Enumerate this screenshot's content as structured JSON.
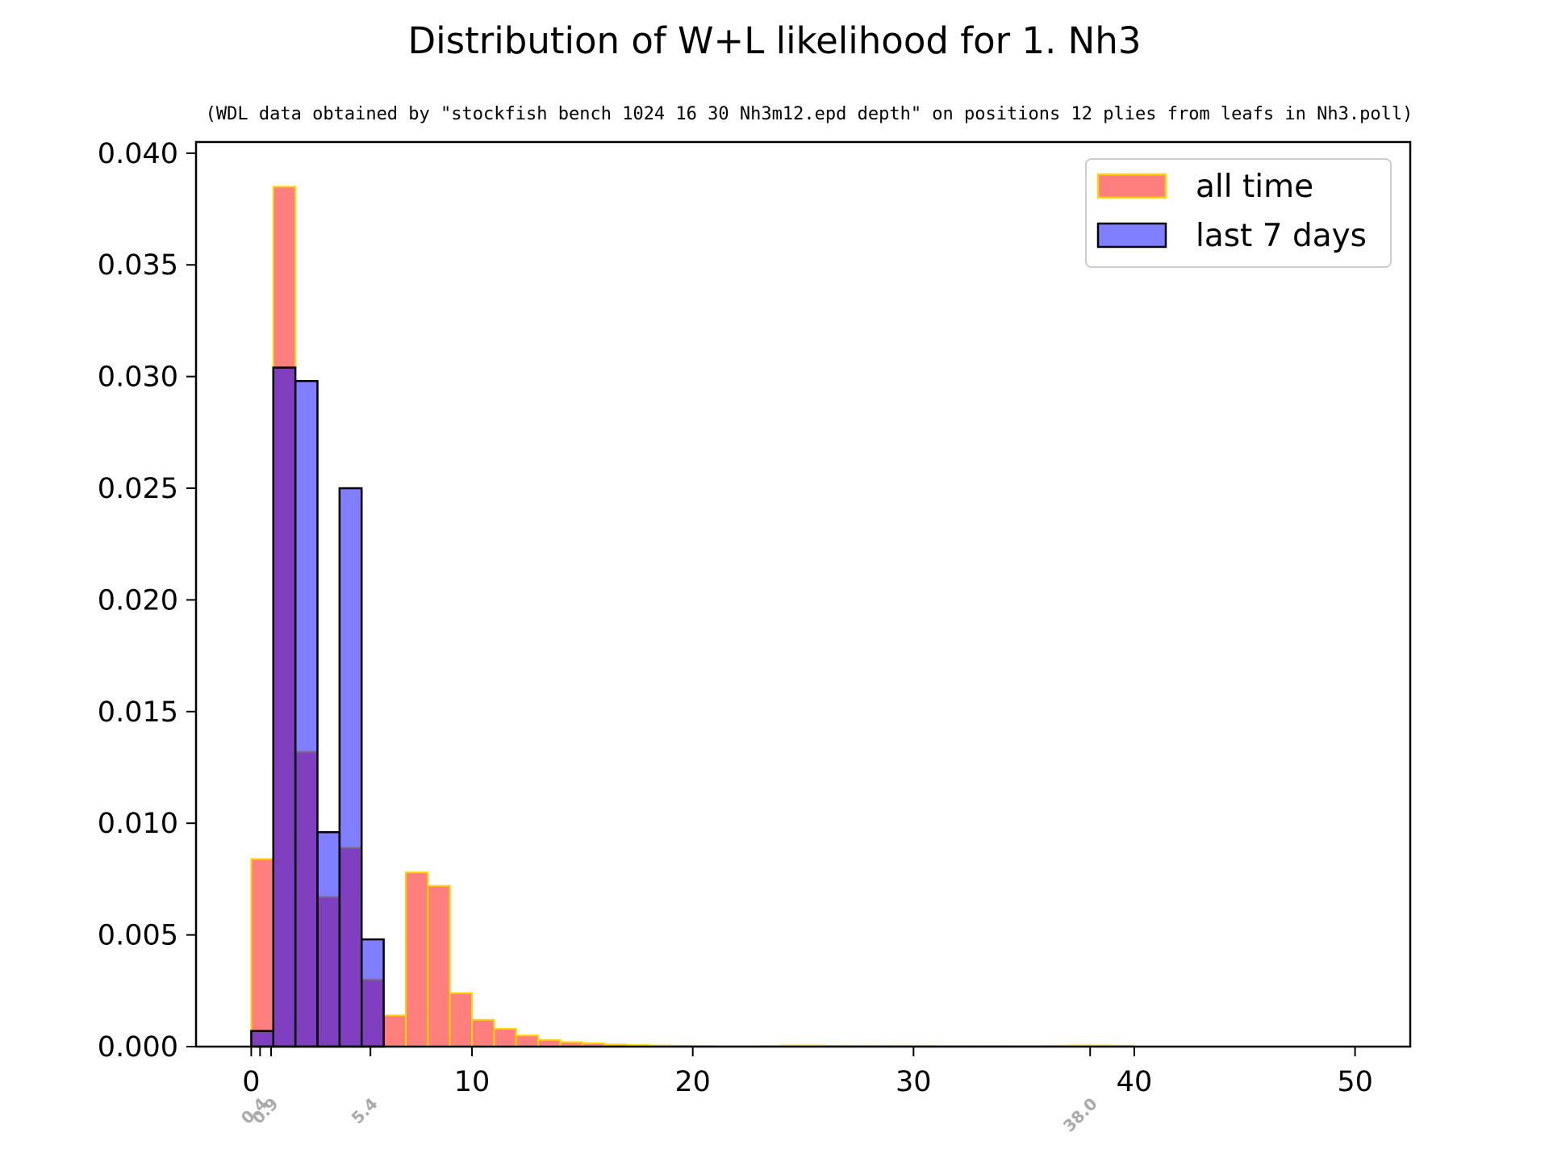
{
  "chart_data": {
    "type": "bar",
    "title": "Distribution of W+L likelihood for 1. Nh3",
    "subtitle": "(WDL data obtained by \"stockfish bench 1024 16 30 Nh3m12.epd depth\" on positions 12 plies from leafs in Nh3.poll)",
    "xlabel": "",
    "ylabel": "",
    "xlim": [
      -2.5,
      52.5
    ],
    "ylim": [
      0,
      0.0405
    ],
    "bin_width": 1.0,
    "x_ticks": [
      0,
      10,
      20,
      30,
      40,
      50
    ],
    "x_tick_labels": [
      "0",
      "10",
      "20",
      "30",
      "40",
      "50"
    ],
    "y_ticks": [
      0.0,
      0.005,
      0.01,
      0.015,
      0.02,
      0.025,
      0.03,
      0.035,
      0.04
    ],
    "y_tick_labels": [
      "0.000",
      "0.005",
      "0.010",
      "0.015",
      "0.020",
      "0.025",
      "0.030",
      "0.035",
      "0.040"
    ],
    "annotation_ticks": [
      {
        "x": 0.4,
        "label": "0.4"
      },
      {
        "x": 0.9,
        "label": "0.9"
      },
      {
        "x": 5.4,
        "label": "5.4"
      },
      {
        "x": 38.0,
        "label": "38.0"
      }
    ],
    "legend_position": "upper-right",
    "series": [
      {
        "name": "all time",
        "fill": "#ff0000",
        "opacity": 0.5,
        "edge": "#ffd700",
        "bin_starts": [
          0,
          1,
          2,
          3,
          4,
          5,
          6,
          7,
          8,
          9,
          10,
          11,
          12,
          13,
          14,
          15,
          16,
          17,
          18,
          19,
          20,
          21,
          22,
          23,
          24,
          25,
          26,
          27,
          28,
          29,
          30,
          31,
          32,
          33,
          34,
          35,
          36,
          37,
          38,
          39
        ],
        "values": [
          0.0084,
          0.0385,
          0.0132,
          0.0067,
          0.0089,
          0.003,
          0.0014,
          0.0078,
          0.0072,
          0.0024,
          0.0012,
          0.0008,
          0.0005,
          0.0003,
          0.0002,
          0.00015,
          0.0001,
          7e-05,
          5e-05,
          4e-05,
          3e-05,
          2e-05,
          2e-05,
          3e-05,
          5e-05,
          5e-05,
          4e-05,
          4e-05,
          4e-05,
          4e-05,
          4e-05,
          3e-05,
          3e-05,
          3e-05,
          3e-05,
          3e-05,
          4e-05,
          5e-05,
          5e-05,
          4e-05
        ]
      },
      {
        "name": "last 7 days",
        "fill": "#0000ff",
        "opacity": 0.5,
        "edge": "#000000",
        "bin_starts": [
          0,
          1,
          2,
          3,
          4,
          5
        ],
        "values": [
          0.0007,
          0.0304,
          0.0298,
          0.0096,
          0.025,
          0.0048
        ]
      }
    ]
  }
}
